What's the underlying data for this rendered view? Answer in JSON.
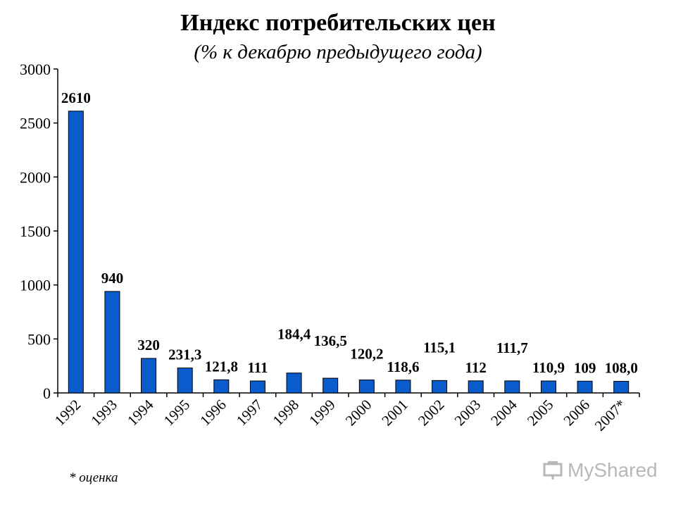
{
  "chart_data": {
    "type": "bar",
    "title": "Индекс потребительских цен",
    "subtitle": "(% к декабрю предыдущего года)",
    "xlabel": "",
    "ylabel": "",
    "categories": [
      "1992",
      "1993",
      "1994",
      "1995",
      "1996",
      "1997",
      "1998",
      "1999",
      "2000",
      "2001",
      "2002",
      "2003",
      "2004",
      "2005",
      "2006",
      "2007*"
    ],
    "values": [
      2610,
      940,
      320,
      231.3,
      121.8,
      111,
      184.4,
      136.5,
      120.2,
      118.6,
      115.1,
      112,
      111.7,
      110.9,
      109,
      108.0
    ],
    "data_labels": [
      "2610",
      "940",
      "320",
      "231,3",
      "121,8",
      "111",
      "184,4",
      "136,5",
      "120,2",
      "118,6",
      "115,1",
      "112",
      "111,7",
      "110,9",
      "109",
      "108,0"
    ],
    "ylim": [
      0,
      3000
    ],
    "yticks": [
      0,
      500,
      1000,
      1500,
      2000,
      2500,
      3000
    ],
    "ytick_labels": [
      "0",
      "500",
      "1000",
      "1500",
      "2000",
      "2500",
      "3000"
    ],
    "bar_color": "#0a5bcc",
    "grid": false,
    "legend": "none"
  },
  "footnote": "* оценка",
  "watermark": {
    "text": "MyShared",
    "icon": "presentation-icon"
  }
}
